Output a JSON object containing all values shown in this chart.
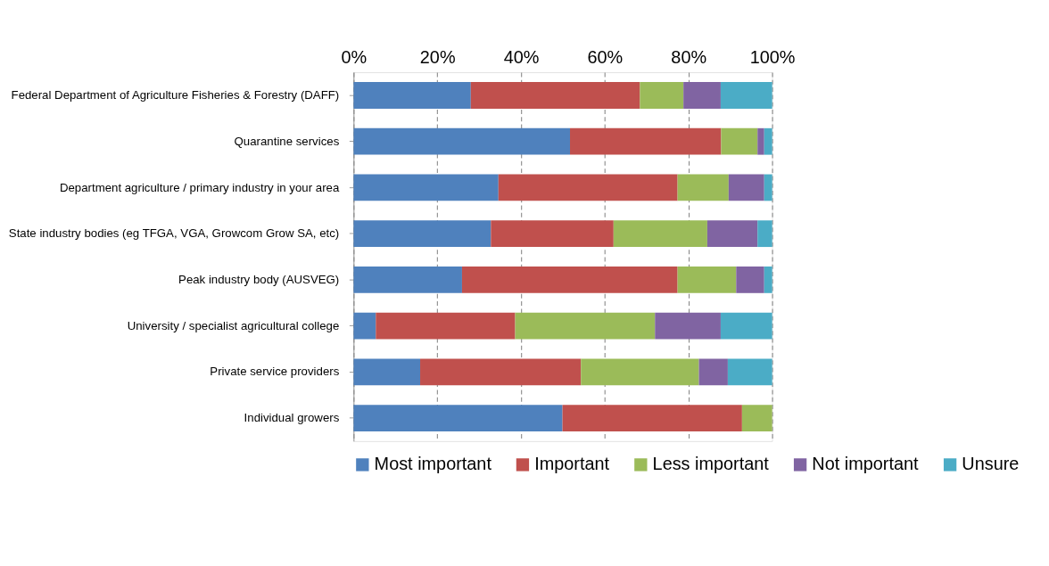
{
  "chart_data": {
    "type": "bar",
    "orientation": "horizontal",
    "stacked": true,
    "categories": [
      "Federal Department of Agriculture Fisheries & Forestry (DAFF)",
      "Quarantine services",
      "Department agriculture / primary industry in your area",
      "State industry bodies (eg TFGA, VGA, Growcom Grow SA, etc)",
      "Peak industry body (AUSVEG)",
      "University / specialist agricultural college",
      "Private service providers",
      "Individual growers"
    ],
    "series": [
      {
        "name": "Most important",
        "color": "#4f81bd",
        "values": [
          28,
          51.7,
          34.6,
          32.8,
          25.9,
          5.3,
          15.9,
          49.9
        ]
      },
      {
        "name": "Important",
        "color": "#c0504d",
        "values": [
          40.4,
          36.1,
          42.8,
          29.3,
          51.5,
          33.3,
          38.4,
          42.9
        ]
      },
      {
        "name": "Less important",
        "color": "#9bbb59",
        "values": [
          10.4,
          8.7,
          12.2,
          22.4,
          14,
          33.4,
          28.2,
          7.2
        ]
      },
      {
        "name": "Not important",
        "color": "#8064a2",
        "values": [
          8.9,
          1.6,
          8.5,
          12,
          6.7,
          15.7,
          6.9,
          0
        ]
      },
      {
        "name": "Unsure",
        "color": "#4bacc6",
        "values": [
          12.3,
          1.9,
          1.9,
          3.5,
          1.9,
          12.3,
          10.6,
          0
        ]
      }
    ],
    "xlim": [
      0,
      100
    ],
    "xticks": [
      {
        "value": 0,
        "label": "0%"
      },
      {
        "value": 20,
        "label": "20%"
      },
      {
        "value": 40,
        "label": "40%"
      },
      {
        "value": 60,
        "label": "60%"
      },
      {
        "value": 80,
        "label": "80%"
      },
      {
        "value": 100,
        "label": "100%"
      }
    ],
    "grid": "x",
    "legend": "bottom"
  }
}
